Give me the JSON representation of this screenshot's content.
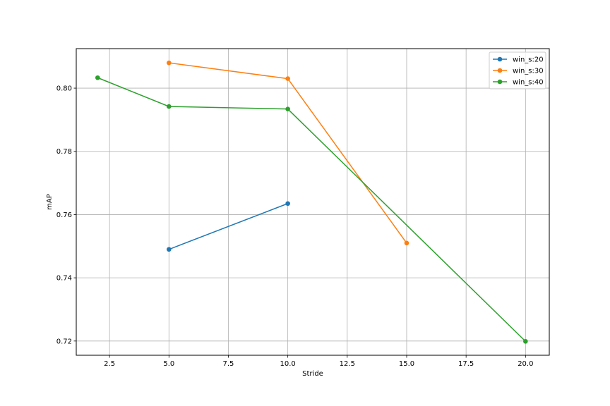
{
  "chart_data": {
    "type": "line",
    "title": "",
    "xlabel": "Stride",
    "ylabel": "mAP",
    "xlim": [
      1.1,
      21.0
    ],
    "ylim": [
      0.7155,
      0.8125
    ],
    "xticks": [
      2.5,
      5.0,
      7.5,
      10.0,
      12.5,
      15.0,
      17.5,
      20.0
    ],
    "xtick_labels": [
      "2.5",
      "5.0",
      "7.5",
      "10.0",
      "12.5",
      "15.0",
      "17.5",
      "20.0"
    ],
    "yticks": [
      0.72,
      0.74,
      0.76,
      0.78,
      0.8
    ],
    "ytick_labels": [
      "0.72",
      "0.74",
      "0.76",
      "0.78",
      "0.80"
    ],
    "grid": true,
    "legend_position": "top-right",
    "series": [
      {
        "name": "win_s:20",
        "color": "#1f77b4",
        "x": [
          5,
          10
        ],
        "y": [
          0.749,
          0.7635
        ]
      },
      {
        "name": "win_s:30",
        "color": "#ff7f0e",
        "x": [
          5,
          10,
          15
        ],
        "y": [
          0.808,
          0.803,
          0.751
        ]
      },
      {
        "name": "win_s:40",
        "color": "#2ca02c",
        "x": [
          2,
          5,
          10,
          20
        ],
        "y": [
          0.8033,
          0.7942,
          0.7934,
          0.7199
        ]
      }
    ]
  }
}
